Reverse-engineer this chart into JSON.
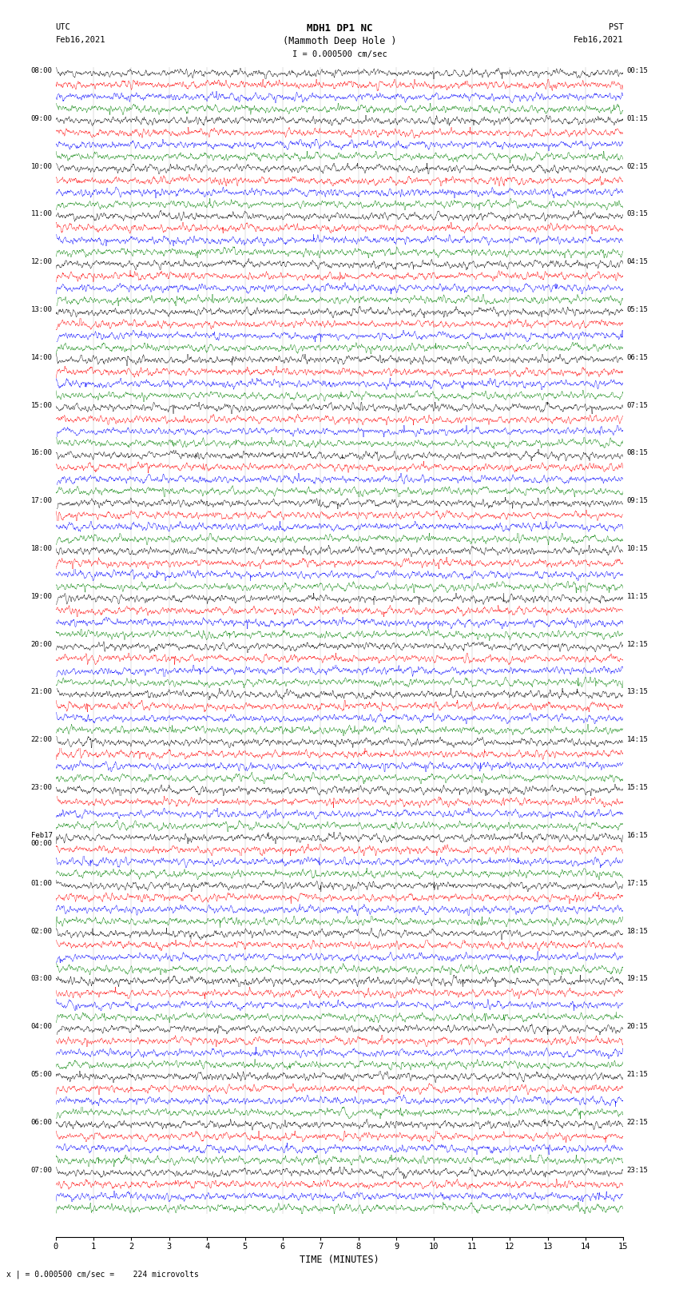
{
  "title_line1": "MDH1 DP1 NC",
  "title_line2": "(Mammoth Deep Hole )",
  "title_line3": "I = 0.000500 cm/sec",
  "left_top_label_line1": "UTC",
  "left_top_label_line2": "Feb16,2021",
  "right_top_label_line1": "PST",
  "right_top_label_line2": "Feb16,2021",
  "xlabel": "TIME (MINUTES)",
  "bottom_note": "x | = 0.000500 cm/sec =    224 microvolts",
  "left_times_utc": [
    "08:00",
    "09:00",
    "10:00",
    "11:00",
    "12:00",
    "13:00",
    "14:00",
    "15:00",
    "16:00",
    "17:00",
    "18:00",
    "19:00",
    "20:00",
    "21:00",
    "22:00",
    "23:00",
    "Feb17\n00:00",
    "01:00",
    "02:00",
    "03:00",
    "04:00",
    "05:00",
    "06:00",
    "07:00"
  ],
  "right_times_pst": [
    "00:15",
    "01:15",
    "02:15",
    "03:15",
    "04:15",
    "05:15",
    "06:15",
    "07:15",
    "08:15",
    "09:15",
    "10:15",
    "11:15",
    "12:15",
    "13:15",
    "14:15",
    "15:15",
    "16:15",
    "17:15",
    "18:15",
    "19:15",
    "20:15",
    "21:15",
    "22:15",
    "23:15"
  ],
  "num_rows": 24,
  "traces_per_row": 4,
  "trace_colors": [
    "black",
    "red",
    "blue",
    "green"
  ],
  "minutes_per_row": 15,
  "background_color": "white",
  "xlim": [
    0,
    15
  ],
  "xticks": [
    0,
    1,
    2,
    3,
    4,
    5,
    6,
    7,
    8,
    9,
    10,
    11,
    12,
    13,
    14,
    15
  ],
  "row_amplitudes": [
    0.8,
    0.8,
    0.85,
    0.9,
    0.95,
    2.5,
    0.18,
    0.18,
    0.18,
    0.18,
    0.18,
    0.18,
    0.22,
    0.22,
    0.22,
    0.22,
    0.18,
    0.18,
    0.18,
    0.18,
    0.18,
    0.18,
    0.18,
    0.18
  ]
}
